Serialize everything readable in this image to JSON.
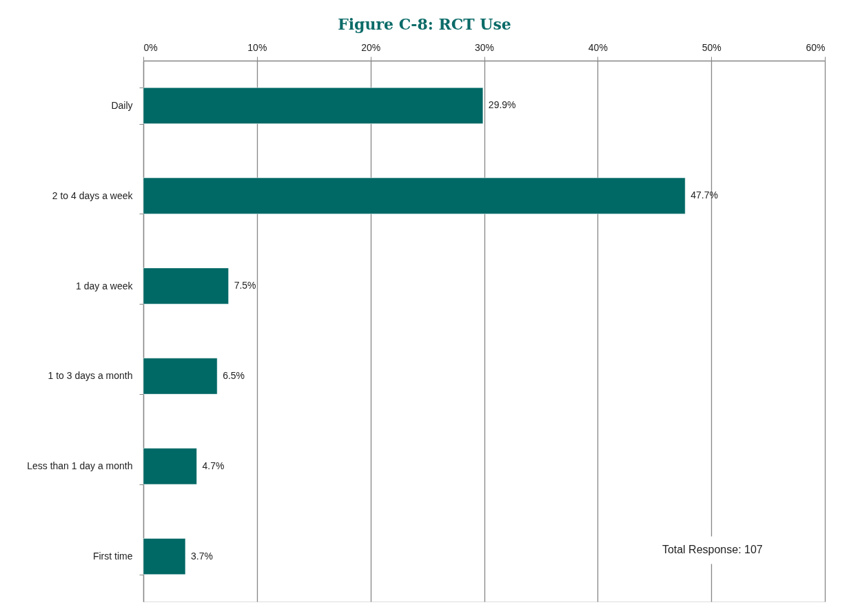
{
  "chart_data": {
    "type": "bar",
    "orientation": "horizontal",
    "title": "Figure C-8: RCT Use",
    "categories": [
      "Daily",
      "2 to 4 days a week",
      "1 day a week",
      "1 to 3 days a month",
      "Less than 1 day a month",
      "First time"
    ],
    "values": [
      29.9,
      47.7,
      7.5,
      6.5,
      4.7,
      3.7
    ],
    "value_labels": [
      "29.9%",
      "47.7%",
      "7.5%",
      "6.5%",
      "4.7%",
      "3.7%"
    ],
    "color": "#006865",
    "xlim": [
      0,
      60
    ],
    "xticks": [
      {
        "value": 0,
        "label": "0%"
      },
      {
        "value": 10,
        "label": "10%"
      },
      {
        "value": 20,
        "label": "20%"
      },
      {
        "value": 30,
        "label": "30%"
      },
      {
        "value": 40,
        "label": "40%"
      },
      {
        "value": 50,
        "label": "50%"
      },
      {
        "value": 60,
        "label": "60%"
      }
    ],
    "grid": "x",
    "annotations": [
      "Total Response: 107"
    ]
  }
}
